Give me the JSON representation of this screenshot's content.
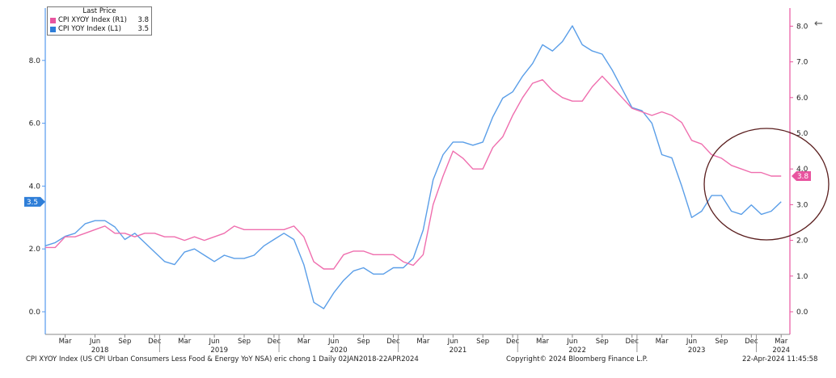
{
  "chart_data": {
    "type": "line",
    "legend": {
      "title": "Last Price",
      "entries": [
        {
          "name": "CPI XYOY Index  (R1)",
          "value": "3.8",
          "color": "#e8559f"
        },
        {
          "name": "CPI YOY Index  (L1)",
          "value": "3.5",
          "color": "#2e7ed8"
        }
      ],
      "placement": "top-left"
    },
    "left_axis": {
      "ticks": [
        "0.0",
        "2.0",
        "4.0",
        "6.0",
        "8.0"
      ],
      "ylim": [
        -0.7,
        9.6
      ],
      "tag": "3.5",
      "color": "#5599ee"
    },
    "right_axis": {
      "ticks": [
        "0.0",
        "1.0",
        "2.0",
        "3.0",
        "4.0",
        "5.0",
        "6.0",
        "7.0",
        "8.0"
      ],
      "ylim": [
        -0.7,
        8.5
      ],
      "tag": "3.8",
      "color": "#e8559f"
    },
    "x_ticks": {
      "months": [
        "Mar",
        "Jun",
        "Sep",
        "Dec",
        "Mar",
        "Jun",
        "Sep",
        "Dec",
        "Mar",
        "Jun",
        "Sep",
        "Dec",
        "Mar",
        "Jun",
        "Sep",
        "Dec",
        "Mar",
        "Jun",
        "Sep",
        "Dec",
        "Mar",
        "Jun",
        "Sep",
        "Dec",
        "Mar"
      ],
      "years": [
        "2018",
        "2019",
        "2020",
        "2021",
        "2022",
        "2023",
        "2024"
      ]
    },
    "x_start": "2018-01",
    "series": [
      {
        "name": "CPI YOY Index",
        "axis": "left",
        "color": "#5a9ee8",
        "values": [
          2.1,
          2.2,
          2.4,
          2.5,
          2.8,
          2.9,
          2.9,
          2.7,
          2.3,
          2.5,
          2.2,
          1.9,
          1.6,
          1.5,
          1.9,
          2.0,
          1.8,
          1.6,
          1.8,
          1.7,
          1.7,
          1.8,
          2.1,
          2.3,
          2.5,
          2.3,
          1.5,
          0.3,
          0.1,
          0.6,
          1.0,
          1.3,
          1.4,
          1.2,
          1.2,
          1.4,
          1.4,
          1.7,
          2.6,
          4.2,
          5.0,
          5.4,
          5.4,
          5.3,
          5.4,
          6.2,
          6.8,
          7.0,
          7.5,
          7.9,
          8.5,
          8.3,
          8.6,
          9.1,
          8.5,
          8.3,
          8.2,
          7.7,
          7.1,
          6.5,
          6.4,
          6.0,
          5.0,
          4.9,
          4.0,
          3.0,
          3.2,
          3.7,
          3.7,
          3.2,
          3.1,
          3.4,
          3.1,
          3.2,
          3.5
        ]
      },
      {
        "name": "CPI XYOY Index",
        "axis": "right",
        "color": "#ef6eae",
        "values": [
          1.8,
          1.8,
          2.1,
          2.1,
          2.2,
          2.3,
          2.4,
          2.2,
          2.2,
          2.1,
          2.2,
          2.2,
          2.1,
          2.1,
          2.0,
          2.1,
          2.0,
          2.1,
          2.2,
          2.4,
          2.3,
          2.3,
          2.3,
          2.3,
          2.3,
          2.4,
          2.1,
          1.4,
          1.2,
          1.2,
          1.6,
          1.7,
          1.7,
          1.6,
          1.6,
          1.6,
          1.4,
          1.3,
          1.6,
          3.0,
          3.8,
          4.5,
          4.3,
          4.0,
          4.0,
          4.6,
          4.9,
          5.5,
          6.0,
          6.4,
          6.5,
          6.2,
          6.0,
          5.9,
          5.9,
          6.3,
          6.6,
          6.3,
          6.0,
          5.7,
          5.6,
          5.5,
          5.6,
          5.5,
          5.3,
          4.8,
          4.7,
          4.4,
          4.3,
          4.1,
          4.0,
          3.9,
          3.9,
          3.8,
          3.8
        ]
      }
    ]
  },
  "footer": {
    "description": "CPI XYOY Index (US CPI Urban Consumers Less Food & Energy YoY NSA) eric chong 1  Daily 02JAN2018-22APR2024",
    "copyright": "Copyright© 2024 Bloomberg Finance L.P.",
    "timestamp": "22-Apr-2024 11:45:58"
  },
  "icons": {
    "corner": "←"
  }
}
